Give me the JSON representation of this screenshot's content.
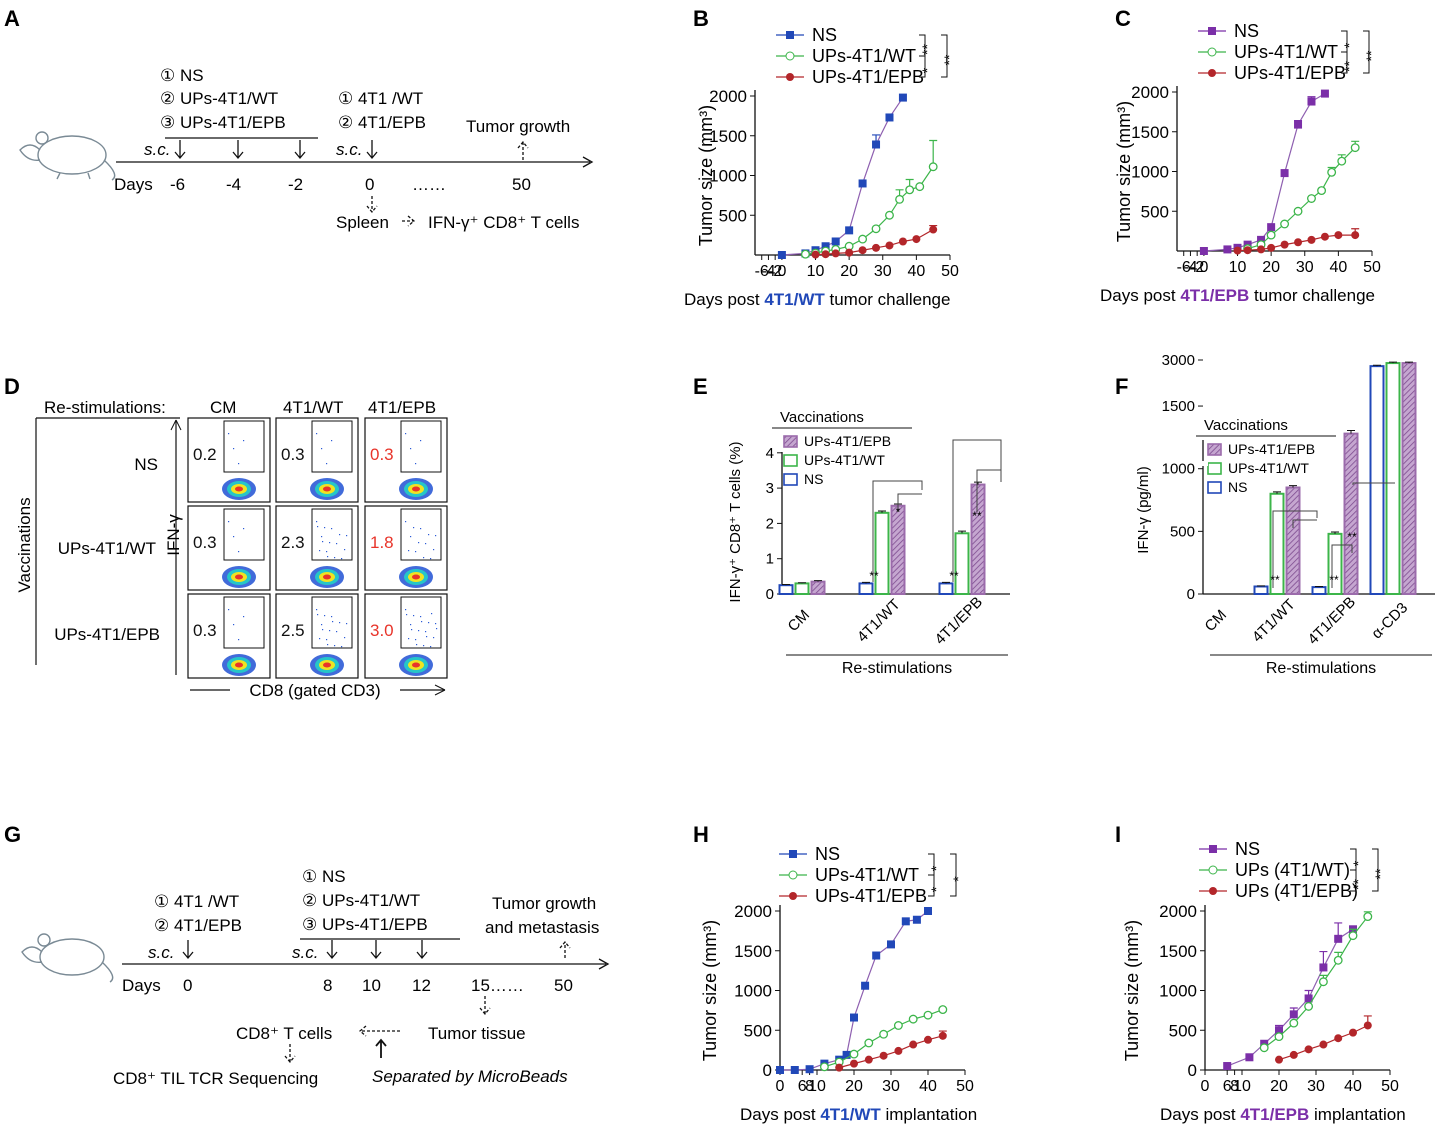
{
  "colors": {
    "ns_blue": "#2148b8",
    "ns_purple": "#7b2fa8",
    "wt_green": "#3cb54a",
    "epb_red": "#b3262a",
    "epb_mauve": "#9b6bab",
    "red_text": "#e8342a"
  },
  "panel_labels": [
    "A",
    "B",
    "C",
    "D",
    "E",
    "F",
    "G",
    "H",
    "I"
  ],
  "panelA": {
    "groups": [
      "① NS",
      "② UPs-4T1/WT",
      "③ UPs-4T1/EPB"
    ],
    "challenge": [
      "① 4T1 /WT",
      "② 4T1/EPB"
    ],
    "tumor_growth": "Tumor growth",
    "sc": "s.c.",
    "days_label": "Days",
    "days": [
      "-6",
      "-4",
      "-2",
      "0",
      "……",
      "50"
    ],
    "spleen": "Spleen",
    "ifn_cells": "IFN-γ⁺ CD8⁺ T cells"
  },
  "panelG": {
    "challenge": [
      "① 4T1 /WT",
      "② 4T1/EPB"
    ],
    "groups": [
      "① NS",
      "② UPs-4T1/WT",
      "③ UPs-4T1/EPB"
    ],
    "tumor_growth_1": "Tumor growth",
    "tumor_growth_2": "and metastasis",
    "sc": "s.c.",
    "days_label": "Days",
    "days": [
      "0",
      "8",
      "10",
      "12",
      "15……",
      "50"
    ],
    "cd8": "CD8⁺ T cells",
    "tumor_tissue": "Tumor tissue",
    "separated": "Separated by MicroBeads",
    "tcr": "CD8⁺ TIL TCR Sequencing"
  },
  "panelD": {
    "restim_label": "Re-stimulations:",
    "columns": [
      "CM",
      "4T1/WT",
      "4T1/EPB"
    ],
    "rows": [
      "NS",
      "UPs-4T1/WT",
      "UPs-4T1/EPB"
    ],
    "vacc_label": "Vaccinations",
    "y_label": "IFN-γ",
    "x_label": "CD8 (gated CD3)",
    "values": [
      [
        "0.2",
        "0.3",
        "0.3"
      ],
      [
        "0.3",
        "2.3",
        "1.8"
      ],
      [
        "0.3",
        "2.5",
        "3.0"
      ]
    ]
  },
  "chart_data": [
    {
      "id": "B",
      "type": "line",
      "ylabel": "Tumor size (mm³)",
      "xlabel_pre": "Days post",
      "xlabel_bold": "4T1/WT",
      "xlabel_post": "tumor challenge",
      "xticks": [
        "-6",
        "-4",
        "-2",
        "0",
        "10",
        "20",
        "30",
        "40",
        "50"
      ],
      "yticks": [
        "500",
        "1000",
        "1500",
        "2000"
      ],
      "ylim": [
        0,
        2000
      ],
      "xlim": [
        -8,
        50
      ],
      "sig": [
        "**",
        "*",
        "**"
      ],
      "series": [
        {
          "name": "NS",
          "marker": "square",
          "color": "#2148b8",
          "x": [
            0,
            7,
            10,
            13,
            16,
            20,
            24,
            28,
            32,
            36
          ],
          "y": [
            0,
            20,
            60,
            110,
            170,
            310,
            900,
            1390,
            1730,
            1980
          ],
          "err": [
            0,
            0,
            0,
            0,
            0,
            0,
            0,
            120,
            40,
            0
          ]
        },
        {
          "name": "UPs-4T1/WT",
          "marker": "circle-open",
          "color": "#3cb54a",
          "x": [
            7,
            10,
            13,
            16,
            20,
            24,
            28,
            32,
            35,
            38,
            41,
            45
          ],
          "y": [
            10,
            25,
            50,
            70,
            110,
            200,
            330,
            500,
            700,
            820,
            860,
            1110
          ],
          "err": [
            0,
            0,
            0,
            0,
            0,
            0,
            0,
            0,
            120,
            130,
            0,
            330
          ]
        },
        {
          "name": "UPs-4T1/EPB",
          "marker": "circle",
          "color": "#b3262a",
          "x": [
            10,
            13,
            16,
            20,
            24,
            28,
            32,
            36,
            40,
            45
          ],
          "y": [
            5,
            10,
            20,
            30,
            60,
            90,
            120,
            170,
            200,
            320
          ],
          "err": [
            0,
            0,
            0,
            0,
            0,
            0,
            0,
            0,
            0,
            50
          ]
        }
      ]
    },
    {
      "id": "C",
      "type": "line",
      "ylabel": "Tumor size (mm³)",
      "xlabel_pre": "Days post",
      "xlabel_bold": "4T1/EPB",
      "xlabel_post": "tumor challenge",
      "xticks": [
        "-6",
        "-4",
        "-2",
        "0",
        "10",
        "20",
        "30",
        "40",
        "50"
      ],
      "yticks": [
        "500",
        "1000",
        "1500",
        "2000"
      ],
      "ylim": [
        0,
        2000
      ],
      "xlim": [
        -8,
        50
      ],
      "sig": [
        "*",
        "**",
        "**"
      ],
      "series": [
        {
          "name": "NS",
          "marker": "square",
          "color": "#7b2fa8",
          "x": [
            0,
            7,
            10,
            13,
            17,
            20,
            24,
            28,
            32,
            36
          ],
          "y": [
            0,
            20,
            40,
            80,
            140,
            300,
            980,
            1590,
            1880,
            1980
          ],
          "err": [
            0,
            0,
            0,
            0,
            0,
            0,
            0,
            50,
            60,
            0
          ]
        },
        {
          "name": "UPs-4T1/WT",
          "marker": "circle-open",
          "color": "#3cb54a",
          "x": [
            13,
            17,
            20,
            24,
            28,
            32,
            35,
            38,
            41,
            45
          ],
          "y": [
            30,
            80,
            200,
            340,
            500,
            660,
            760,
            990,
            1130,
            1300
          ],
          "err": [
            0,
            0,
            0,
            0,
            0,
            0,
            0,
            60,
            80,
            80
          ]
        },
        {
          "name": "UPs-4T1/EPB",
          "marker": "circle",
          "color": "#b3262a",
          "x": [
            10,
            13,
            17,
            20,
            24,
            28,
            32,
            36,
            40,
            45
          ],
          "y": [
            5,
            10,
            20,
            40,
            80,
            110,
            140,
            180,
            200,
            200
          ],
          "err": [
            0,
            0,
            0,
            0,
            0,
            0,
            0,
            0,
            0,
            80
          ]
        }
      ]
    },
    {
      "id": "E",
      "type": "bar",
      "ylabel": "IFN-γ⁺ CD8⁺ T cells (%)",
      "legend_title": "Vaccinations",
      "xlabel": "Re-stimulations",
      "categories": [
        "CM",
        "4T1/WT",
        "4T1/EPB"
      ],
      "yticks": [
        "0",
        "1",
        "2",
        "3",
        "4"
      ],
      "ylim": [
        0,
        4
      ],
      "series": [
        {
          "name": "NS",
          "color": "#2148b8",
          "style": "open",
          "values": [
            0.25,
            0.3,
            0.3
          ],
          "err": [
            0.02,
            0.03,
            0.03
          ]
        },
        {
          "name": "UPs-4T1/WT",
          "color": "#3cb54a",
          "style": "open",
          "values": [
            0.3,
            2.3,
            1.72
          ],
          "err": [
            0.02,
            0.05,
            0.06
          ]
        },
        {
          "name": "UPs-4T1/EPB",
          "color": "#9b6bab",
          "style": "hatch",
          "values": [
            0.35,
            2.5,
            3.1
          ],
          "err": [
            0.03,
            0.05,
            0.07
          ]
        }
      ],
      "sig": [
        "**",
        "*",
        "**",
        "**"
      ]
    },
    {
      "id": "F",
      "type": "bar",
      "ylabel": "IFN-γ (pg/ml)",
      "legend_title": "Vaccinations",
      "xlabel": "Re-stimulations",
      "categories": [
        "CM",
        "4T1/WT",
        "4T1/EPB",
        "α-CD3"
      ],
      "yticks": [
        "0",
        "500",
        "1000",
        "1500",
        "3000"
      ],
      "series": [
        {
          "name": "NS",
          "color": "#2148b8",
          "style": "open",
          "values": [
            0,
            60,
            55,
            2800
          ],
          "err": [
            0,
            5,
            5,
            30
          ]
        },
        {
          "name": "UPs-4T1/WT",
          "color": "#3cb54a",
          "style": "open",
          "values": [
            0,
            800,
            480,
            2900
          ],
          "err": [
            0,
            15,
            15,
            30
          ]
        },
        {
          "name": "UPs-4T1/EPB",
          "color": "#9b6bab",
          "style": "hatch",
          "values": [
            0,
            850,
            1280,
            2900
          ],
          "err": [
            0,
            15,
            25,
            30
          ]
        }
      ],
      "sig": [
        "**",
        "**",
        "**"
      ]
    },
    {
      "id": "H",
      "type": "line",
      "ylabel": "Tumor size (mm³)",
      "xlabel_pre": "Days post",
      "xlabel_bold": "4T1/WT",
      "xlabel_post": "implantation",
      "xticks": [
        "0",
        "6",
        "8",
        "10",
        "20",
        "30",
        "40",
        "50"
      ],
      "yticks": [
        "0",
        "500",
        "1000",
        "1500",
        "2000"
      ],
      "ylim": [
        0,
        2000
      ],
      "xlim": [
        0,
        50
      ],
      "sig": [
        "*",
        "*",
        "*"
      ],
      "series": [
        {
          "name": "NS",
          "marker": "square",
          "color": "#2148b8",
          "x": [
            0,
            4,
            8,
            12,
            16,
            18,
            20,
            23,
            26,
            30,
            34,
            37,
            40
          ],
          "y": [
            0,
            0,
            10,
            80,
            130,
            190,
            660,
            1060,
            1440,
            1580,
            1870,
            1890,
            2000
          ],
          "err": [
            0,
            0,
            0,
            0,
            0,
            0,
            0,
            0,
            0,
            30,
            0,
            0,
            0
          ]
        },
        {
          "name": "UPs-4T1/WT",
          "marker": "circle-open",
          "color": "#3cb54a",
          "x": [
            12,
            16,
            20,
            24,
            28,
            32,
            36,
            40,
            44
          ],
          "y": [
            40,
            100,
            200,
            340,
            450,
            560,
            640,
            690,
            760
          ],
          "err": [
            0,
            0,
            0,
            0,
            0,
            0,
            0,
            0,
            0
          ]
        },
        {
          "name": "UPs-4T1/EPB",
          "marker": "circle",
          "color": "#b3262a",
          "x": [
            16,
            20,
            24,
            28,
            32,
            36,
            40,
            44
          ],
          "y": [
            30,
            80,
            130,
            180,
            240,
            320,
            380,
            430
          ],
          "err": [
            0,
            0,
            0,
            0,
            0,
            0,
            0,
            60
          ]
        }
      ]
    },
    {
      "id": "I",
      "type": "line",
      "ylabel": "Tumor size (mm³)",
      "xlabel_pre": "Days post",
      "xlabel_bold": "4T1/EPB",
      "xlabel_post": "implantation",
      "xticks": [
        "0",
        "6",
        "8",
        "10",
        "20",
        "30",
        "40",
        "50"
      ],
      "yticks": [
        "0",
        "500",
        "1000",
        "1500",
        "2000"
      ],
      "ylim": [
        0,
        2000
      ],
      "xlim": [
        0,
        50
      ],
      "sig": [
        "*",
        "**",
        "**"
      ],
      "series": [
        {
          "name": "NS",
          "marker": "square",
          "color": "#7b2fa8",
          "x": [
            6,
            12,
            16,
            20,
            24,
            28,
            32,
            36,
            40
          ],
          "y": [
            50,
            160,
            330,
            500,
            700,
            900,
            1290,
            1650,
            1770
          ],
          "err": [
            0,
            0,
            0,
            60,
            80,
            100,
            200,
            200,
            0
          ]
        },
        {
          "name": "UPs (4T1/WT)",
          "marker": "circle-open",
          "color": "#3cb54a",
          "x": [
            16,
            20,
            24,
            28,
            32,
            36,
            40,
            44
          ],
          "y": [
            280,
            420,
            590,
            800,
            1110,
            1380,
            1690,
            1930
          ],
          "err": [
            0,
            0,
            0,
            0,
            80,
            100,
            80,
            60
          ]
        },
        {
          "name": "UPs (4T1/EPB)",
          "marker": "circle",
          "color": "#b3262a",
          "x": [
            20,
            24,
            28,
            32,
            36,
            40,
            44
          ],
          "y": [
            130,
            190,
            260,
            320,
            400,
            470,
            560
          ],
          "err": [
            0,
            0,
            0,
            0,
            0,
            0,
            120
          ]
        }
      ]
    }
  ]
}
